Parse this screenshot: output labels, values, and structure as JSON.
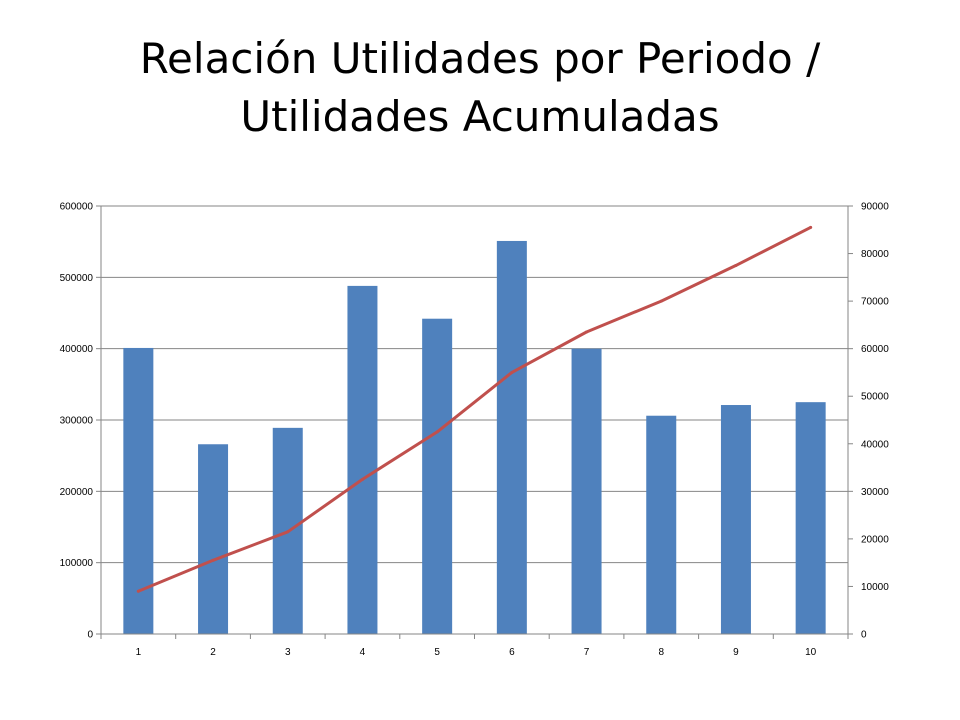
{
  "title": {
    "line1": "Relación Utilidades por Periodo /",
    "line2": "Utilidades Acumuladas"
  },
  "chart_data": {
    "type": "bar",
    "categories": [
      "1",
      "2",
      "3",
      "4",
      "5",
      "6",
      "7",
      "8",
      "9",
      "10"
    ],
    "series": [
      {
        "type": "bar",
        "axis": "left",
        "color": "#4F81BD",
        "values": [
          401000,
          266000,
          289000,
          488000,
          442000,
          551000,
          400000,
          306000,
          321000,
          325000
        ]
      },
      {
        "type": "line",
        "axis": "right",
        "color": "#C0504D",
        "values": [
          9000,
          15500,
          21500,
          32500,
          42500,
          55000,
          63500,
          70000,
          77500,
          85500
        ]
      }
    ],
    "y_left": {
      "ylim": [
        0,
        600000
      ],
      "ticks": [
        "0",
        "100000",
        "200000",
        "300000",
        "400000",
        "500000",
        "600000"
      ]
    },
    "y_right": {
      "ylim": [
        0,
        90000
      ],
      "ticks": [
        "0",
        "10000",
        "20000",
        "30000",
        "40000",
        "50000",
        "60000",
        "70000",
        "80000",
        "90000"
      ]
    },
    "grid": true,
    "legend": "none"
  }
}
